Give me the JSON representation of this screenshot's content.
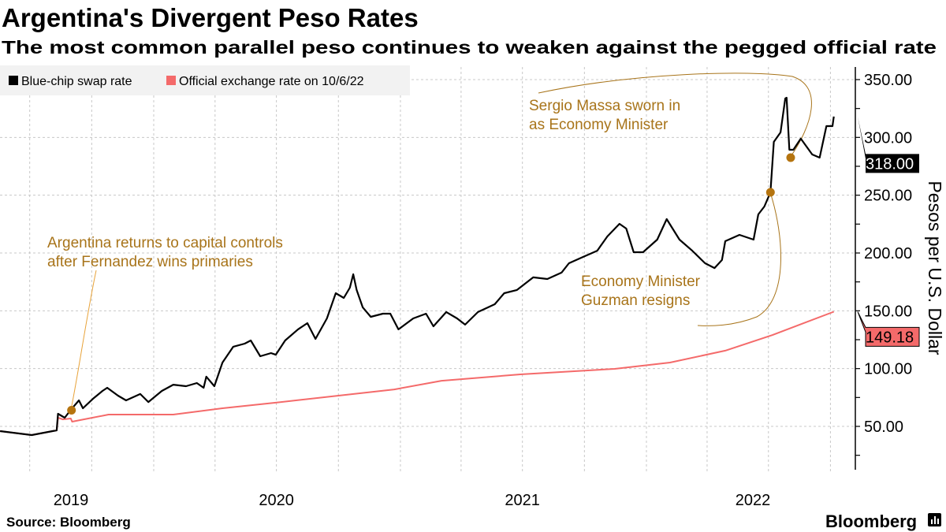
{
  "chart_data": {
    "type": "line",
    "title": "Argentina's Divergent Peso Rates",
    "subtitle": "The most common parallel peso continues to weaken against the pegged official rate",
    "ylabel": "Pesos per U.S. Dollar",
    "xlabel": "",
    "ylim": [
      13,
      360
    ],
    "xlim": [
      "2019-05-18",
      "2022-10-06"
    ],
    "grid": true,
    "legend_placement": "top-left",
    "y_ticks": [
      "50.00",
      "100.00",
      "150.00",
      "200.00",
      "250.00",
      "300.00",
      "350.00"
    ],
    "x_ticks": [
      "2019",
      "2020",
      "2021",
      "2022"
    ],
    "series": [
      {
        "name": "Blue-chip swap rate",
        "color": "#000000",
        "last_value_label": "318.00",
        "points": [
          [
            "2019-05-18",
            45.9
          ],
          [
            "2019-07-04",
            42.5
          ],
          [
            "2019-08-10",
            46.6
          ],
          [
            "2019-08-12",
            60.9
          ],
          [
            "2019-08-22",
            57.5
          ],
          [
            "2019-08-31",
            64.3
          ],
          [
            "2019-09-12",
            72.5
          ],
          [
            "2019-09-18",
            65.7
          ],
          [
            "2019-10-03",
            73.9
          ],
          [
            "2019-10-17",
            80.7
          ],
          [
            "2019-10-24",
            83.4
          ],
          [
            "2019-11-09",
            76.6
          ],
          [
            "2019-11-21",
            72.5
          ],
          [
            "2019-12-12",
            78.0
          ],
          [
            "2019-12-24",
            71.1
          ],
          [
            "2020-01-13",
            80.7
          ],
          [
            "2020-01-30",
            86.1
          ],
          [
            "2020-02-18",
            84.8
          ],
          [
            "2020-03-05",
            87.5
          ],
          [
            "2020-03-15",
            83.4
          ],
          [
            "2020-03-19",
            93.0
          ],
          [
            "2020-03-31",
            84.8
          ],
          [
            "2020-04-12",
            105.2
          ],
          [
            "2020-04-28",
            118.9
          ],
          [
            "2020-05-15",
            121.6
          ],
          [
            "2020-05-24",
            124.3
          ],
          [
            "2020-06-07",
            110.7
          ],
          [
            "2020-06-23",
            113.4
          ],
          [
            "2020-06-30",
            112.0
          ],
          [
            "2020-07-14",
            124.3
          ],
          [
            "2020-08-02",
            133.9
          ],
          [
            "2020-08-16",
            139.3
          ],
          [
            "2020-08-28",
            125.7
          ],
          [
            "2020-09-14",
            143.4
          ],
          [
            "2020-09-27",
            165.2
          ],
          [
            "2020-10-09",
            161.1
          ],
          [
            "2020-10-18",
            170.0
          ],
          [
            "2020-10-23",
            181.6
          ],
          [
            "2020-10-28",
            168.0
          ],
          [
            "2020-11-06",
            153.0
          ],
          [
            "2020-11-18",
            144.8
          ],
          [
            "2020-12-06",
            147.5
          ],
          [
            "2020-12-17",
            147.5
          ],
          [
            "2020-12-29",
            133.9
          ],
          [
            "2021-01-20",
            143.4
          ],
          [
            "2021-02-08",
            147.5
          ],
          [
            "2021-02-19",
            136.6
          ],
          [
            "2021-03-10",
            148.9
          ],
          [
            "2021-03-26",
            143.4
          ],
          [
            "2021-04-07",
            138.0
          ],
          [
            "2021-04-26",
            148.9
          ],
          [
            "2021-05-21",
            155.7
          ],
          [
            "2021-06-04",
            165.2
          ],
          [
            "2021-06-23",
            168.0
          ],
          [
            "2021-07-17",
            178.9
          ],
          [
            "2021-08-07",
            177.5
          ],
          [
            "2021-08-28",
            183.0
          ],
          [
            "2021-09-08",
            191.1
          ],
          [
            "2021-09-29",
            196.6
          ],
          [
            "2021-10-20",
            202.0
          ],
          [
            "2021-11-04",
            214.3
          ],
          [
            "2021-11-22",
            225.2
          ],
          [
            "2021-12-02",
            221.1
          ],
          [
            "2021-12-13",
            200.7
          ],
          [
            "2021-12-27",
            200.7
          ],
          [
            "2022-01-17",
            211.6
          ],
          [
            "2022-01-31",
            229.3
          ],
          [
            "2022-02-19",
            211.6
          ],
          [
            "2022-03-10",
            202.0
          ],
          [
            "2022-03-29",
            191.1
          ],
          [
            "2022-04-12",
            187.0
          ],
          [
            "2022-04-23",
            193.9
          ],
          [
            "2022-04-28",
            210.2
          ],
          [
            "2022-05-19",
            215.7
          ],
          [
            "2022-06-09",
            211.6
          ],
          [
            "2022-06-16",
            233.4
          ],
          [
            "2022-06-25",
            240.2
          ],
          [
            "2022-07-04",
            252.5
          ],
          [
            "2022-07-09",
            296.1
          ],
          [
            "2022-07-19",
            304.3
          ],
          [
            "2022-07-26",
            333.6
          ],
          [
            "2022-07-28",
            334.3
          ],
          [
            "2022-08-01",
            289.3
          ],
          [
            "2022-08-07",
            289.3
          ],
          [
            "2022-08-18",
            298.9
          ],
          [
            "2022-09-04",
            285.2
          ],
          [
            "2022-09-15",
            282.5
          ],
          [
            "2022-09-25",
            309.8
          ],
          [
            "2022-10-04",
            309.8
          ],
          [
            "2022-10-06",
            318.0
          ]
        ]
      },
      {
        "name": "Official exchange rate on 10/6/22",
        "color": "#f46a6a",
        "last_value_label": "149.18",
        "points": [
          [
            "2019-05-18",
            45.9
          ],
          [
            "2019-07-04",
            42.5
          ],
          [
            "2019-08-10",
            46.6
          ],
          [
            "2019-08-12",
            57.5
          ],
          [
            "2019-08-19",
            56.1
          ],
          [
            "2019-08-31",
            56.8
          ],
          [
            "2019-09-02",
            54.1
          ],
          [
            "2019-10-26",
            60.2
          ],
          [
            "2020-01-30",
            60.2
          ],
          [
            "2020-04-12",
            65.7
          ],
          [
            "2020-06-30",
            70.5
          ],
          [
            "2020-12-23",
            82.0
          ],
          [
            "2021-03-03",
            89.5
          ],
          [
            "2021-06-28",
            95.0
          ],
          [
            "2021-11-15",
            99.8
          ],
          [
            "2022-02-05",
            105.2
          ],
          [
            "2022-04-28",
            115.5
          ],
          [
            "2022-07-07",
            129.0
          ],
          [
            "2022-10-06",
            149.18
          ]
        ]
      }
    ],
    "annotations": [
      {
        "date": "2019-09-01",
        "value": 64.0,
        "lines": [
          "Argentina returns to capital controls",
          "after Fernandez wins primaries"
        ]
      },
      {
        "date": "2022-07-04",
        "value": 252.5,
        "lines": [
          "Economy Minister",
          "Guzman resigns"
        ]
      },
      {
        "date": "2022-08-03",
        "value": 282.5,
        "lines": [
          "Sergio Massa sworn in",
          "as Economy Minister"
        ]
      }
    ],
    "annotation_color": "#a8741a",
    "marker_color": "#b5740f"
  },
  "footer": {
    "source": "Source: Bloomberg",
    "logo": "Bloomberg"
  }
}
